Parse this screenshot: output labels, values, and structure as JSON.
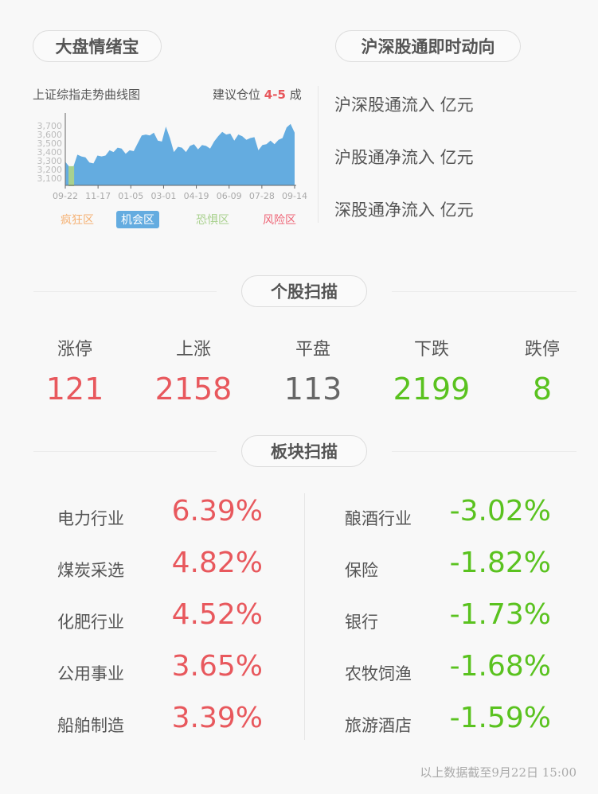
{
  "colors": {
    "up": "#e8585d",
    "down": "#5ac21f",
    "flat": "#666666",
    "area": "#64ace0",
    "fear": "#a9d18e"
  },
  "sentiment": {
    "title": "大盘情绪宝",
    "chart_label": "上证综指走势曲线图",
    "advice_prefix": "建议仓位",
    "advice_value": "4-5",
    "advice_suffix": "成",
    "zones": [
      {
        "label": "疯狂区",
        "color": "#f5b173",
        "active": false
      },
      {
        "label": "机会区",
        "color": "#64ace0",
        "active": true
      },
      {
        "label": "恐惧区",
        "color": "#a9d18e",
        "active": false
      },
      {
        "label": "风险区",
        "color": "#ee6677",
        "active": false
      }
    ]
  },
  "chart_data": {
    "type": "area",
    "ylim": [
      3020,
      3800
    ],
    "yticks": [
      "3,100",
      "3,200",
      "3,300",
      "3,400",
      "3,500",
      "3,600",
      "3,700"
    ],
    "xticks": [
      "09-22",
      "11-17",
      "01-05",
      "03-01",
      "04-19",
      "06-09",
      "07-28",
      "09-14"
    ],
    "values": [
      3290,
      3230,
      3230,
      3370,
      3350,
      3340,
      3280,
      3270,
      3360,
      3350,
      3360,
      3420,
      3400,
      3450,
      3440,
      3380,
      3420,
      3410,
      3500,
      3590,
      3600,
      3590,
      3620,
      3530,
      3520,
      3690,
      3560,
      3400,
      3460,
      3450,
      3400,
      3470,
      3490,
      3430,
      3480,
      3470,
      3440,
      3520,
      3580,
      3630,
      3600,
      3610,
      3530,
      3600,
      3580,
      3540,
      3560,
      3570,
      3420,
      3480,
      3490,
      3530,
      3490,
      3540,
      3560,
      3680,
      3720,
      3620
    ],
    "highlight": {
      "zone": "恐惧区",
      "from_index": 1,
      "to_index": 2
    }
  },
  "connect": {
    "title": "沪深股通即时动向",
    "items": [
      "沪深股通流入 亿元",
      "沪股通净流入 亿元",
      "深股通净流入 亿元"
    ]
  },
  "stocks": {
    "title": "个股扫描",
    "items": [
      {
        "label": "涨停",
        "value": "121",
        "tone": "up"
      },
      {
        "label": "上涨",
        "value": "2158",
        "tone": "up"
      },
      {
        "label": "平盘",
        "value": "113",
        "tone": "flat"
      },
      {
        "label": "下跌",
        "value": "2199",
        "tone": "down"
      },
      {
        "label": "跌停",
        "value": "8",
        "tone": "down"
      }
    ]
  },
  "sectors": {
    "title": "板块扫描",
    "gainers": [
      {
        "name": "电力行业",
        "pct": "6.39%"
      },
      {
        "name": "煤炭采选",
        "pct": "4.82%"
      },
      {
        "name": "化肥行业",
        "pct": "4.52%"
      },
      {
        "name": "公用事业",
        "pct": "3.65%"
      },
      {
        "name": "船舶制造",
        "pct": "3.39%"
      }
    ],
    "losers": [
      {
        "name": "酿酒行业",
        "pct": "-3.02%"
      },
      {
        "name": "保险",
        "pct": "-1.82%"
      },
      {
        "name": "银行",
        "pct": "-1.73%"
      },
      {
        "name": "农牧饲渔",
        "pct": "-1.68%"
      },
      {
        "name": "旅游酒店",
        "pct": "-1.59%"
      }
    ]
  },
  "footer": "以上数据截至9月22日 15:00"
}
